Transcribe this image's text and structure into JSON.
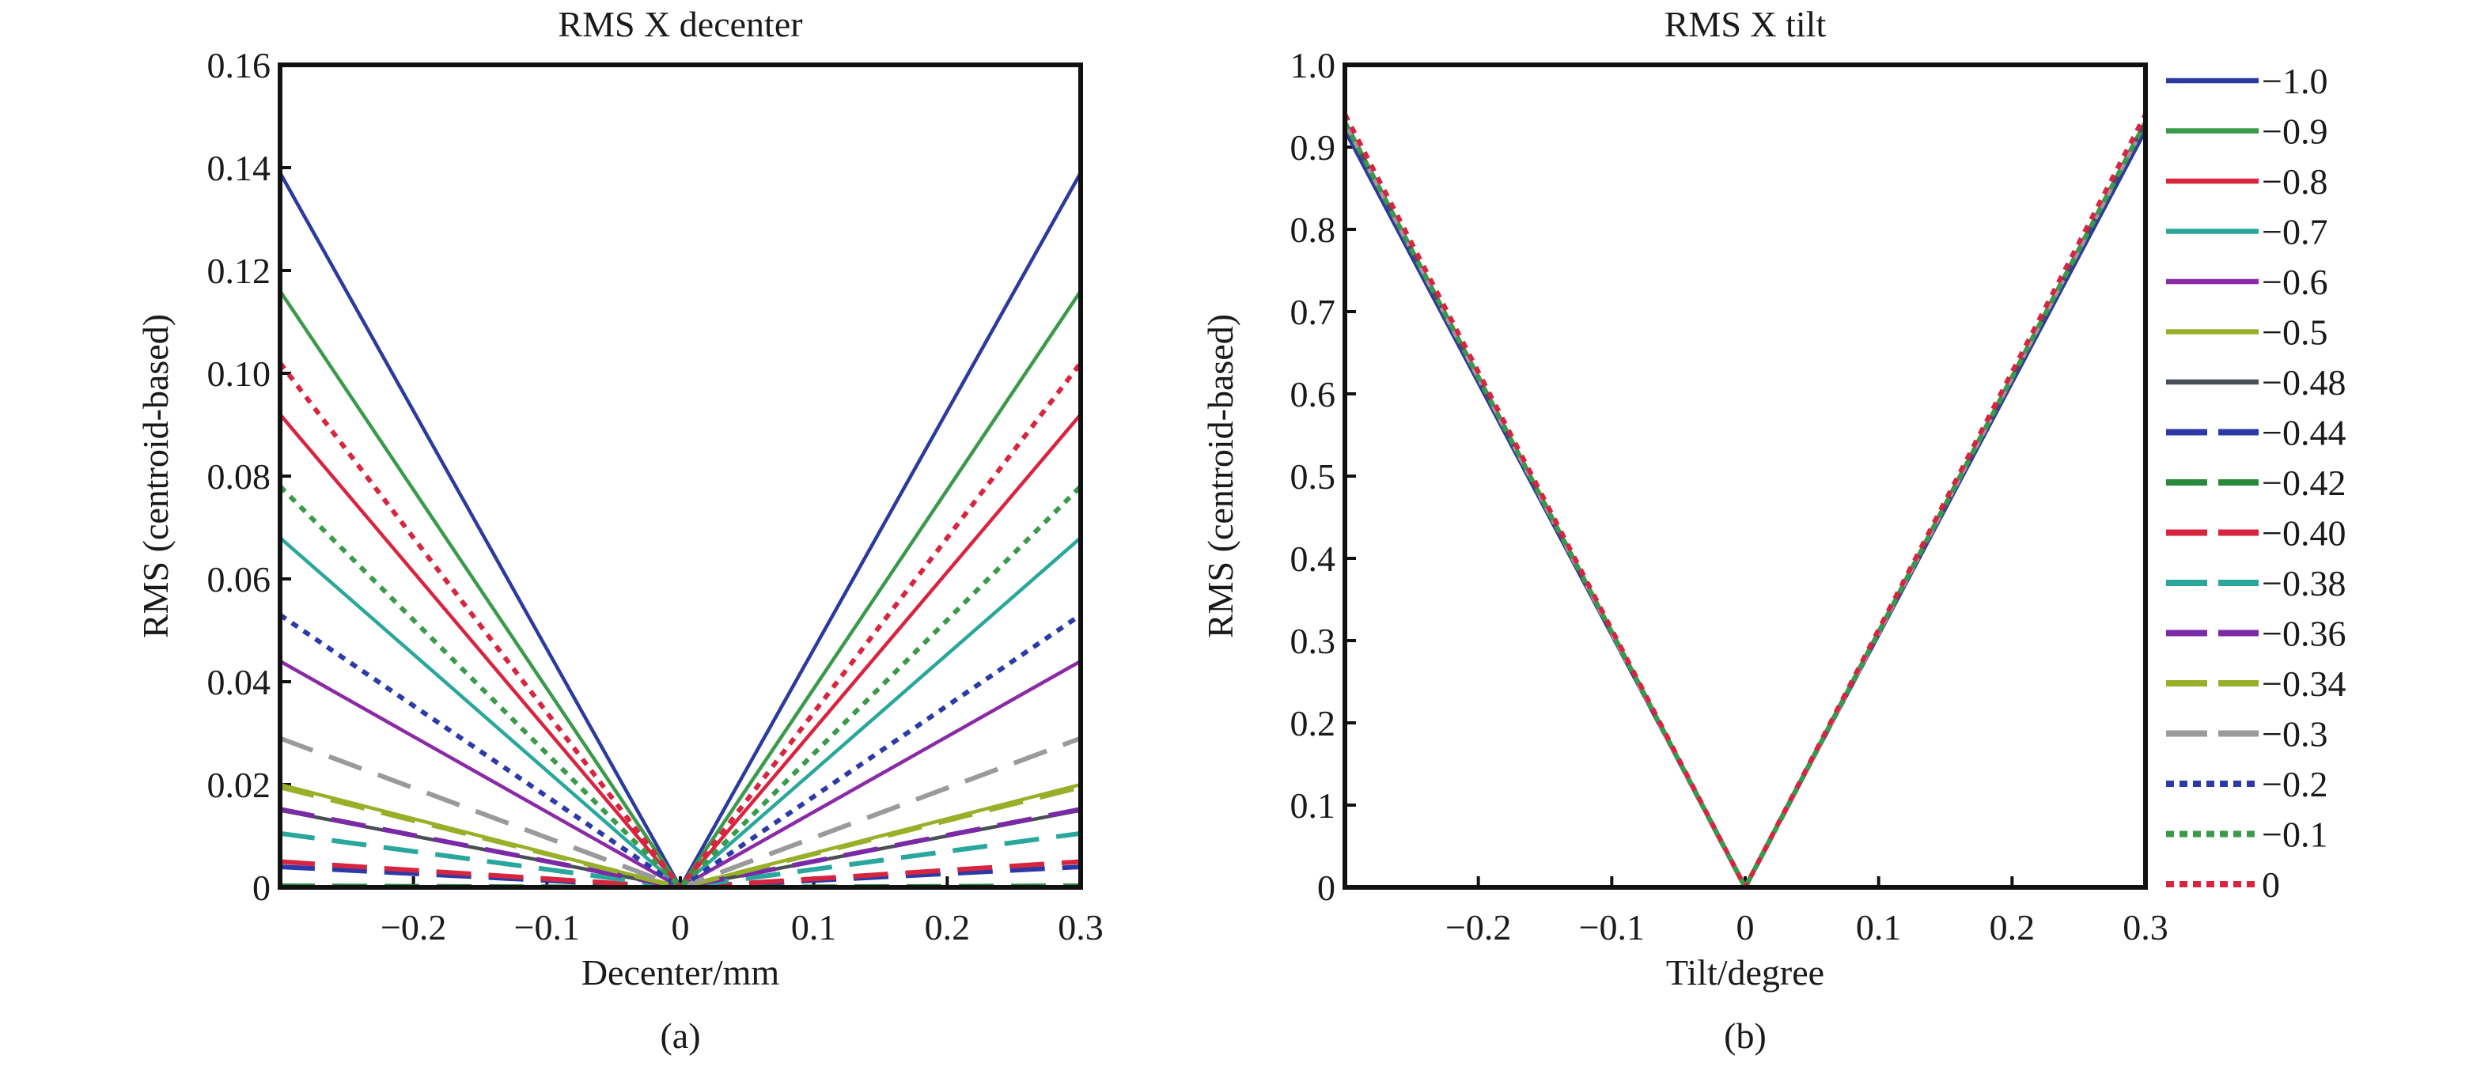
{
  "figure": {
    "panels": [
      "(a)",
      "(b)"
    ]
  },
  "chart_data": [
    {
      "type": "line",
      "id": "decenter",
      "title": "RMS X decenter",
      "xlabel": "Decenter/mm",
      "ylabel": "RMS (centroid-based)",
      "xlim": [
        -0.3,
        0.3
      ],
      "ylim": [
        0,
        0.16
      ],
      "xticks": [
        -0.2,
        -0.1,
        0,
        0.1,
        0.2,
        0.3
      ],
      "xtick_labels": [
        "−0.2",
        "−0.1",
        "0",
        "0.1",
        "0.2",
        "0.3"
      ],
      "yticks": [
        0,
        0.02,
        0.04,
        0.06,
        0.08,
        0.1,
        0.12,
        0.14,
        0.16
      ],
      "ytick_labels": [
        "0",
        "0.02",
        "0.04",
        "0.06",
        "0.08",
        "0.10",
        "0.12",
        "0.14",
        "0.16"
      ],
      "grid": false,
      "x": [
        -0.3,
        0,
        0.3
      ],
      "series": [
        {
          "name": "−1.0",
          "values": [
            0.139,
            0.0,
            0.139
          ]
        },
        {
          "name": "−0.9",
          "values": [
            0.116,
            0.0,
            0.116
          ]
        },
        {
          "name": "−0.8",
          "values": [
            0.092,
            0.0,
            0.092
          ]
        },
        {
          "name": "−0.7",
          "values": [
            0.068,
            0.0,
            0.068
          ]
        },
        {
          "name": "−0.6",
          "values": [
            0.044,
            0.0,
            0.044
          ]
        },
        {
          "name": "−0.5",
          "values": [
            0.02,
            0.0,
            0.02
          ]
        },
        {
          "name": "−0.48",
          "values": [
            0.015,
            0.0,
            0.015
          ]
        },
        {
          "name": "−0.44",
          "values": [
            0.004,
            0.0,
            0.004
          ]
        },
        {
          "name": "−0.42",
          "values": [
            0.0003,
            0.0,
            0.0003
          ]
        },
        {
          "name": "−0.40",
          "values": [
            0.005,
            0.0,
            0.005
          ]
        },
        {
          "name": "−0.38",
          "values": [
            0.0105,
            0.0,
            0.0105
          ]
        },
        {
          "name": "−0.36",
          "values": [
            0.0152,
            0.0,
            0.0152
          ]
        },
        {
          "name": "−0.34",
          "values": [
            0.0195,
            0.0,
            0.0195
          ]
        },
        {
          "name": "−0.3",
          "values": [
            0.029,
            0.0,
            0.029
          ]
        },
        {
          "name": "−0.2",
          "values": [
            0.053,
            0.0,
            0.053
          ]
        },
        {
          "name": "−0.1",
          "values": [
            0.078,
            0.0,
            0.078
          ]
        },
        {
          "name": "0",
          "values": [
            0.102,
            0.0,
            0.102
          ]
        }
      ]
    },
    {
      "type": "line",
      "id": "tilt",
      "title": "RMS X tilt",
      "xlabel": "Tilt/degree",
      "ylabel": "RMS (centroid-based)",
      "xlim": [
        -0.3,
        0.3
      ],
      "ylim": [
        0,
        1.0
      ],
      "xticks": [
        -0.2,
        -0.1,
        0,
        0.1,
        0.2,
        0.3
      ],
      "xtick_labels": [
        "−0.2",
        "−0.1",
        "0",
        "0.1",
        "0.2",
        "0.3"
      ],
      "yticks": [
        0,
        0.1,
        0.2,
        0.3,
        0.4,
        0.5,
        0.6,
        0.7,
        0.8,
        0.9,
        1.0
      ],
      "ytick_labels": [
        "0",
        "0.1",
        "0.2",
        "0.3",
        "0.4",
        "0.5",
        "0.6",
        "0.7",
        "0.8",
        "0.9",
        "1.0"
      ],
      "grid": false,
      "legend_position": "right",
      "x": [
        -0.3,
        0,
        0.3
      ],
      "series": [
        {
          "name": "−1.0",
          "values": [
            0.92,
            0.0,
            0.92
          ]
        },
        {
          "name": "−0.9",
          "values": [
            0.93,
            0.0,
            0.93
          ]
        },
        {
          "name": "−0.8",
          "values": [
            0.93,
            0.0,
            0.93
          ]
        },
        {
          "name": "−0.7",
          "values": [
            0.93,
            0.0,
            0.93
          ]
        },
        {
          "name": "−0.6",
          "values": [
            0.93,
            0.0,
            0.93
          ]
        },
        {
          "name": "−0.5",
          "values": [
            0.93,
            0.0,
            0.93
          ]
        },
        {
          "name": "−0.48",
          "values": [
            0.93,
            0.0,
            0.93
          ]
        },
        {
          "name": "−0.44",
          "values": [
            0.93,
            0.0,
            0.93
          ]
        },
        {
          "name": "−0.42",
          "values": [
            0.93,
            0.0,
            0.93
          ]
        },
        {
          "name": "−0.40",
          "values": [
            0.93,
            0.0,
            0.93
          ]
        },
        {
          "name": "−0.38",
          "values": [
            0.93,
            0.0,
            0.93
          ]
        },
        {
          "name": "−0.36",
          "values": [
            0.93,
            0.0,
            0.93
          ]
        },
        {
          "name": "−0.34",
          "values": [
            0.93,
            0.0,
            0.93
          ]
        },
        {
          "name": "−0.3",
          "values": [
            0.93,
            0.0,
            0.93
          ]
        },
        {
          "name": "−0.2",
          "values": [
            0.93,
            0.0,
            0.93
          ]
        },
        {
          "name": "−0.1",
          "values": [
            0.93,
            0.0,
            0.93
          ]
        },
        {
          "name": "0",
          "values": [
            0.94,
            0.0,
            0.94
          ]
        }
      ]
    }
  ],
  "legend": {
    "entries": [
      {
        "label": "−1.0",
        "color": "#2b3a9e",
        "style": "solid"
      },
      {
        "label": "−0.9",
        "color": "#3a9a4a",
        "style": "solid"
      },
      {
        "label": "−0.8",
        "color": "#d8253f",
        "style": "solid"
      },
      {
        "label": "−0.7",
        "color": "#2aa79c",
        "style": "solid"
      },
      {
        "label": "−0.6",
        "color": "#8a2aa6",
        "style": "solid"
      },
      {
        "label": "−0.5",
        "color": "#97b028",
        "style": "solid"
      },
      {
        "label": "−0.48",
        "color": "#4a4e55",
        "style": "solid"
      },
      {
        "label": "−0.44",
        "color": "#2b3aa8",
        "style": "dashed"
      },
      {
        "label": "−0.42",
        "color": "#2a8a3c",
        "style": "dashed"
      },
      {
        "label": "−0.40",
        "color": "#d8253f",
        "style": "dashed"
      },
      {
        "label": "−0.38",
        "color": "#2aa79c",
        "style": "dashed"
      },
      {
        "label": "−0.36",
        "color": "#7a2aa6",
        "style": "dashed"
      },
      {
        "label": "−0.34",
        "color": "#97b028",
        "style": "dashed"
      },
      {
        "label": "−0.3",
        "color": "#9a9a9a",
        "style": "dashed"
      },
      {
        "label": "−0.2",
        "color": "#2b3aa8",
        "style": "dotted"
      },
      {
        "label": "−0.1",
        "color": "#3a9a4a",
        "style": "dotted"
      },
      {
        "label": "0",
        "color": "#d8253f",
        "style": "dotted"
      }
    ]
  }
}
